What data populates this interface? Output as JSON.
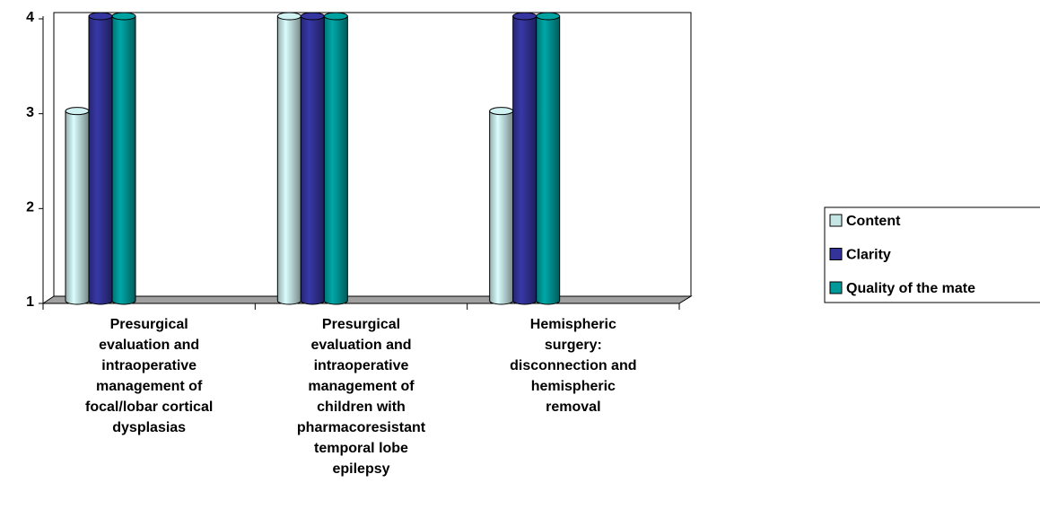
{
  "chart_data": {
    "type": "bar3d",
    "categories": [
      "Presurgical\nevaluation and\nintraoperative\nmanagement of\nfocal/lobar cortical\ndysplasias",
      "Presurgical\nevaluation and\nintraoperative\nmanagement of\nchildren with\npharmacoresistant\ntemporal lobe\nepilepsy",
      "Hemispheric\nsurgery:\ndisconnection and\nhemispheric\nremoval"
    ],
    "series": [
      {
        "name": "Content",
        "color": "#c6e6e6",
        "values": [
          3,
          4,
          3
        ]
      },
      {
        "name": "Clarity",
        "color": "#333399",
        "values": [
          4,
          4,
          4
        ]
      },
      {
        "name": "Quality of the mate",
        "color": "#009999",
        "values": [
          4,
          4,
          4
        ]
      }
    ],
    "ylim": [
      1,
      4
    ],
    "yticks": [
      1,
      2,
      3,
      4
    ],
    "legend": "right"
  }
}
